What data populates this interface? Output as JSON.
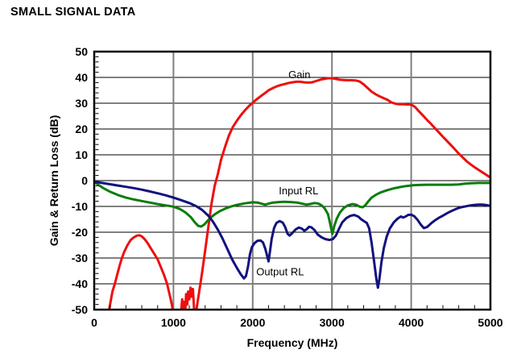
{
  "page": {
    "title": "SMALL SIGNAL DATA"
  },
  "chart_data": {
    "type": "line",
    "title": "SMALL SIGNAL DATA",
    "xlabel": "Frequency (MHz)",
    "ylabel": "Gain & Return Loss (dB)",
    "xlim": [
      0,
      5000
    ],
    "ylim": [
      -50,
      50
    ],
    "x_major_ticks": [
      0,
      1000,
      2000,
      3000,
      4000,
      5000
    ],
    "y_major_ticks": [
      50,
      40,
      30,
      20,
      10,
      0,
      -10,
      -20,
      -30,
      -40,
      -50
    ],
    "x_minor_step": 200,
    "y_minor_step": 2,
    "grid": {
      "horizontal_color": "#000000",
      "vertical_color": "#7f7f7f",
      "frame_color": "#000000"
    },
    "legend_position": "inline-annotations",
    "series": [
      {
        "name": "Gain",
        "color": "#ee0e0e",
        "points": [
          [
            175,
            -52
          ],
          [
            200,
            -48
          ],
          [
            230,
            -43
          ],
          [
            260,
            -40
          ],
          [
            290,
            -36.5
          ],
          [
            320,
            -33
          ],
          [
            350,
            -30
          ],
          [
            380,
            -27.5
          ],
          [
            420,
            -25
          ],
          [
            460,
            -23
          ],
          [
            500,
            -22
          ],
          [
            540,
            -21.3
          ],
          [
            570,
            -21.2
          ],
          [
            600,
            -21.6
          ],
          [
            640,
            -22.8
          ],
          [
            680,
            -24.5
          ],
          [
            720,
            -26.5
          ],
          [
            760,
            -28.5
          ],
          [
            800,
            -30.5
          ],
          [
            840,
            -33.5
          ],
          [
            880,
            -36.5
          ],
          [
            920,
            -40
          ],
          [
            950,
            -44
          ],
          [
            980,
            -48
          ],
          [
            1000,
            -52
          ],
          [
            1090,
            -53
          ],
          [
            1110,
            -46
          ],
          [
            1120,
            -52
          ],
          [
            1135,
            -47
          ],
          [
            1145,
            -53
          ],
          [
            1160,
            -44
          ],
          [
            1175,
            -48
          ],
          [
            1185,
            -43
          ],
          [
            1200,
            -46
          ],
          [
            1215,
            -41.5
          ],
          [
            1230,
            -45
          ],
          [
            1245,
            -42
          ],
          [
            1255,
            -47
          ],
          [
            1265,
            -53
          ],
          [
            1290,
            -50
          ],
          [
            1320,
            -44
          ],
          [
            1360,
            -36
          ],
          [
            1400,
            -27
          ],
          [
            1440,
            -18
          ],
          [
            1480,
            -9
          ],
          [
            1520,
            -2
          ],
          [
            1560,
            2.5
          ],
          [
            1600,
            8
          ],
          [
            1650,
            13
          ],
          [
            1700,
            17.5
          ],
          [
            1750,
            20.8
          ],
          [
            1800,
            23.2
          ],
          [
            1850,
            25.3
          ],
          [
            1900,
            27.2
          ],
          [
            1950,
            28.8
          ],
          [
            2000,
            30.2
          ],
          [
            2050,
            31.5
          ],
          [
            2100,
            32.7
          ],
          [
            2150,
            33.8
          ],
          [
            2200,
            35
          ],
          [
            2250,
            35.8
          ],
          [
            2300,
            36.5
          ],
          [
            2350,
            37
          ],
          [
            2400,
            37.4
          ],
          [
            2450,
            37.8
          ],
          [
            2500,
            38.1
          ],
          [
            2550,
            38.3
          ],
          [
            2600,
            38.3
          ],
          [
            2650,
            38.1
          ],
          [
            2700,
            38
          ],
          [
            2750,
            38.1
          ],
          [
            2800,
            38.6
          ],
          [
            2850,
            39.1
          ],
          [
            2900,
            39.4
          ],
          [
            2950,
            39.7
          ],
          [
            3000,
            39.7
          ],
          [
            3050,
            39.4
          ],
          [
            3100,
            39.1
          ],
          [
            3150,
            39
          ],
          [
            3200,
            38.9
          ],
          [
            3250,
            38.9
          ],
          [
            3300,
            38.8
          ],
          [
            3350,
            38.4
          ],
          [
            3400,
            37.3
          ],
          [
            3450,
            35.9
          ],
          [
            3500,
            34.5
          ],
          [
            3550,
            33.5
          ],
          [
            3600,
            32.7
          ],
          [
            3650,
            32
          ],
          [
            3700,
            31.3
          ],
          [
            3750,
            30.3
          ],
          [
            3800,
            29.8
          ],
          [
            3850,
            29.6
          ],
          [
            3900,
            29.6
          ],
          [
            3950,
            29.5
          ],
          [
            4000,
            29.5
          ],
          [
            4050,
            28.5
          ],
          [
            4100,
            26.8
          ],
          [
            4150,
            25.2
          ],
          [
            4200,
            23.5
          ],
          [
            4250,
            22
          ],
          [
            4300,
            20.3
          ],
          [
            4350,
            18.7
          ],
          [
            4400,
            17
          ],
          [
            4450,
            15.4
          ],
          [
            4500,
            13.8
          ],
          [
            4550,
            12.2
          ],
          [
            4600,
            10.5
          ],
          [
            4650,
            9
          ],
          [
            4700,
            7.5
          ],
          [
            4750,
            6.3
          ],
          [
            4800,
            5.2
          ],
          [
            4850,
            4.2
          ],
          [
            4900,
            3.2
          ],
          [
            4950,
            2.2
          ],
          [
            5000,
            1.2
          ]
        ]
      },
      {
        "name": "Input RL",
        "color": "#0b7d0b",
        "points": [
          [
            0,
            -0.4
          ],
          [
            60,
            -1.8
          ],
          [
            120,
            -3
          ],
          [
            200,
            -4.3
          ],
          [
            300,
            -5.6
          ],
          [
            400,
            -6.6
          ],
          [
            500,
            -7.3
          ],
          [
            600,
            -7.9
          ],
          [
            700,
            -8.5
          ],
          [
            800,
            -9.1
          ],
          [
            900,
            -9.6
          ],
          [
            1000,
            -10.1
          ],
          [
            1080,
            -11
          ],
          [
            1150,
            -12.3
          ],
          [
            1220,
            -14.2
          ],
          [
            1270,
            -16.2
          ],
          [
            1310,
            -17.5
          ],
          [
            1350,
            -17.8
          ],
          [
            1390,
            -17
          ],
          [
            1430,
            -15.6
          ],
          [
            1470,
            -14.3
          ],
          [
            1520,
            -13.1
          ],
          [
            1580,
            -11.9
          ],
          [
            1650,
            -10.9
          ],
          [
            1720,
            -10.1
          ],
          [
            1800,
            -9.4
          ],
          [
            1900,
            -8.8
          ],
          [
            2000,
            -8.4
          ],
          [
            2060,
            -8.5
          ],
          [
            2120,
            -9
          ],
          [
            2160,
            -9.3
          ],
          [
            2200,
            -8.9
          ],
          [
            2260,
            -8.5
          ],
          [
            2330,
            -8.3
          ],
          [
            2400,
            -8.2
          ],
          [
            2480,
            -8.3
          ],
          [
            2560,
            -8.5
          ],
          [
            2620,
            -8.9
          ],
          [
            2680,
            -9.3
          ],
          [
            2720,
            -9.1
          ],
          [
            2780,
            -8.7
          ],
          [
            2830,
            -8.9
          ],
          [
            2870,
            -9.6
          ],
          [
            2910,
            -10.8
          ],
          [
            2950,
            -13
          ],
          [
            2980,
            -17
          ],
          [
            3005,
            -20.7
          ],
          [
            3030,
            -17.5
          ],
          [
            3060,
            -14.8
          ],
          [
            3100,
            -12.4
          ],
          [
            3150,
            -10.6
          ],
          [
            3200,
            -9.6
          ],
          [
            3260,
            -9.1
          ],
          [
            3310,
            -9.4
          ],
          [
            3350,
            -10.1
          ],
          [
            3390,
            -10.3
          ],
          [
            3420,
            -9.6
          ],
          [
            3460,
            -8
          ],
          [
            3500,
            -6.6
          ],
          [
            3560,
            -5.4
          ],
          [
            3620,
            -4.5
          ],
          [
            3700,
            -3.7
          ],
          [
            3780,
            -3
          ],
          [
            3860,
            -2.5
          ],
          [
            3940,
            -2.1
          ],
          [
            4020,
            -1.8
          ],
          [
            4100,
            -1.7
          ],
          [
            4200,
            -1.6
          ],
          [
            4300,
            -1.6
          ],
          [
            4400,
            -1.6
          ],
          [
            4500,
            -1.6
          ],
          [
            4600,
            -1.5
          ],
          [
            4680,
            -1.2
          ],
          [
            4760,
            -1
          ],
          [
            4850,
            -0.9
          ],
          [
            4930,
            -0.9
          ],
          [
            5000,
            -0.9
          ]
        ]
      },
      {
        "name": "Output RL",
        "color": "#12127e",
        "points": [
          [
            0,
            -0.4
          ],
          [
            100,
            -0.9
          ],
          [
            200,
            -1.4
          ],
          [
            300,
            -1.9
          ],
          [
            400,
            -2.4
          ],
          [
            500,
            -2.9
          ],
          [
            600,
            -3.5
          ],
          [
            700,
            -4.2
          ],
          [
            800,
            -4.9
          ],
          [
            900,
            -5.7
          ],
          [
            1000,
            -6.6
          ],
          [
            1100,
            -7.6
          ],
          [
            1200,
            -8.7
          ],
          [
            1280,
            -9.8
          ],
          [
            1360,
            -11.3
          ],
          [
            1440,
            -13.6
          ],
          [
            1500,
            -16
          ],
          [
            1560,
            -19
          ],
          [
            1620,
            -22.5
          ],
          [
            1680,
            -26.5
          ],
          [
            1740,
            -30.5
          ],
          [
            1800,
            -33.8
          ],
          [
            1850,
            -36.3
          ],
          [
            1890,
            -37.9
          ],
          [
            1915,
            -37
          ],
          [
            1940,
            -33.5
          ],
          [
            1965,
            -28.5
          ],
          [
            1990,
            -25.8
          ],
          [
            2020,
            -24.3
          ],
          [
            2060,
            -23.3
          ],
          [
            2100,
            -23.2
          ],
          [
            2130,
            -24
          ],
          [
            2160,
            -26.5
          ],
          [
            2185,
            -29.5
          ],
          [
            2200,
            -31.3
          ],
          [
            2215,
            -28
          ],
          [
            2240,
            -22.5
          ],
          [
            2270,
            -18.3
          ],
          [
            2300,
            -16.4
          ],
          [
            2340,
            -15.7
          ],
          [
            2380,
            -16.3
          ],
          [
            2410,
            -18
          ],
          [
            2440,
            -20.6
          ],
          [
            2465,
            -21.3
          ],
          [
            2500,
            -20.3
          ],
          [
            2540,
            -19
          ],
          [
            2580,
            -18.2
          ],
          [
            2620,
            -18.6
          ],
          [
            2650,
            -19.4
          ],
          [
            2680,
            -18.9
          ],
          [
            2710,
            -17.9
          ],
          [
            2740,
            -18.1
          ],
          [
            2780,
            -19.2
          ],
          [
            2820,
            -20.9
          ],
          [
            2870,
            -22
          ],
          [
            2920,
            -22.7
          ],
          [
            2970,
            -23
          ],
          [
            3010,
            -22.7
          ],
          [
            3050,
            -21.3
          ],
          [
            3090,
            -18.6
          ],
          [
            3130,
            -16.2
          ],
          [
            3180,
            -14.6
          ],
          [
            3230,
            -13.7
          ],
          [
            3280,
            -13.3
          ],
          [
            3330,
            -13.9
          ],
          [
            3370,
            -15
          ],
          [
            3410,
            -15.8
          ],
          [
            3440,
            -16.4
          ],
          [
            3470,
            -18.5
          ],
          [
            3500,
            -24
          ],
          [
            3530,
            -31
          ],
          [
            3560,
            -38
          ],
          [
            3580,
            -41.5
          ],
          [
            3600,
            -38
          ],
          [
            3625,
            -31.5
          ],
          [
            3655,
            -26
          ],
          [
            3690,
            -21.8
          ],
          [
            3730,
            -18.6
          ],
          [
            3780,
            -16.2
          ],
          [
            3830,
            -14.7
          ],
          [
            3870,
            -13.9
          ],
          [
            3900,
            -14.3
          ],
          [
            3930,
            -13.9
          ],
          [
            3960,
            -13.3
          ],
          [
            4000,
            -13.2
          ],
          [
            4040,
            -13.8
          ],
          [
            4080,
            -15.2
          ],
          [
            4120,
            -17
          ],
          [
            4160,
            -18.4
          ],
          [
            4200,
            -18
          ],
          [
            4250,
            -16.6
          ],
          [
            4300,
            -15.4
          ],
          [
            4350,
            -14.4
          ],
          [
            4400,
            -13.6
          ],
          [
            4450,
            -12.7
          ],
          [
            4500,
            -11.9
          ],
          [
            4550,
            -11.2
          ],
          [
            4600,
            -10.6
          ],
          [
            4650,
            -10.2
          ],
          [
            4700,
            -9.9
          ],
          [
            4750,
            -9.6
          ],
          [
            4800,
            -9.4
          ],
          [
            4850,
            -9.3
          ],
          [
            4900,
            -9.3
          ],
          [
            4950,
            -9.5
          ],
          [
            5000,
            -9.8
          ]
        ]
      }
    ],
    "annotations": [
      {
        "text": "Gain",
        "x": 2450,
        "y": 41
      },
      {
        "text": "Input RL",
        "x": 2330,
        "y": -4
      },
      {
        "text": "Output RL",
        "x": 2045,
        "y": -35.5
      }
    ]
  }
}
